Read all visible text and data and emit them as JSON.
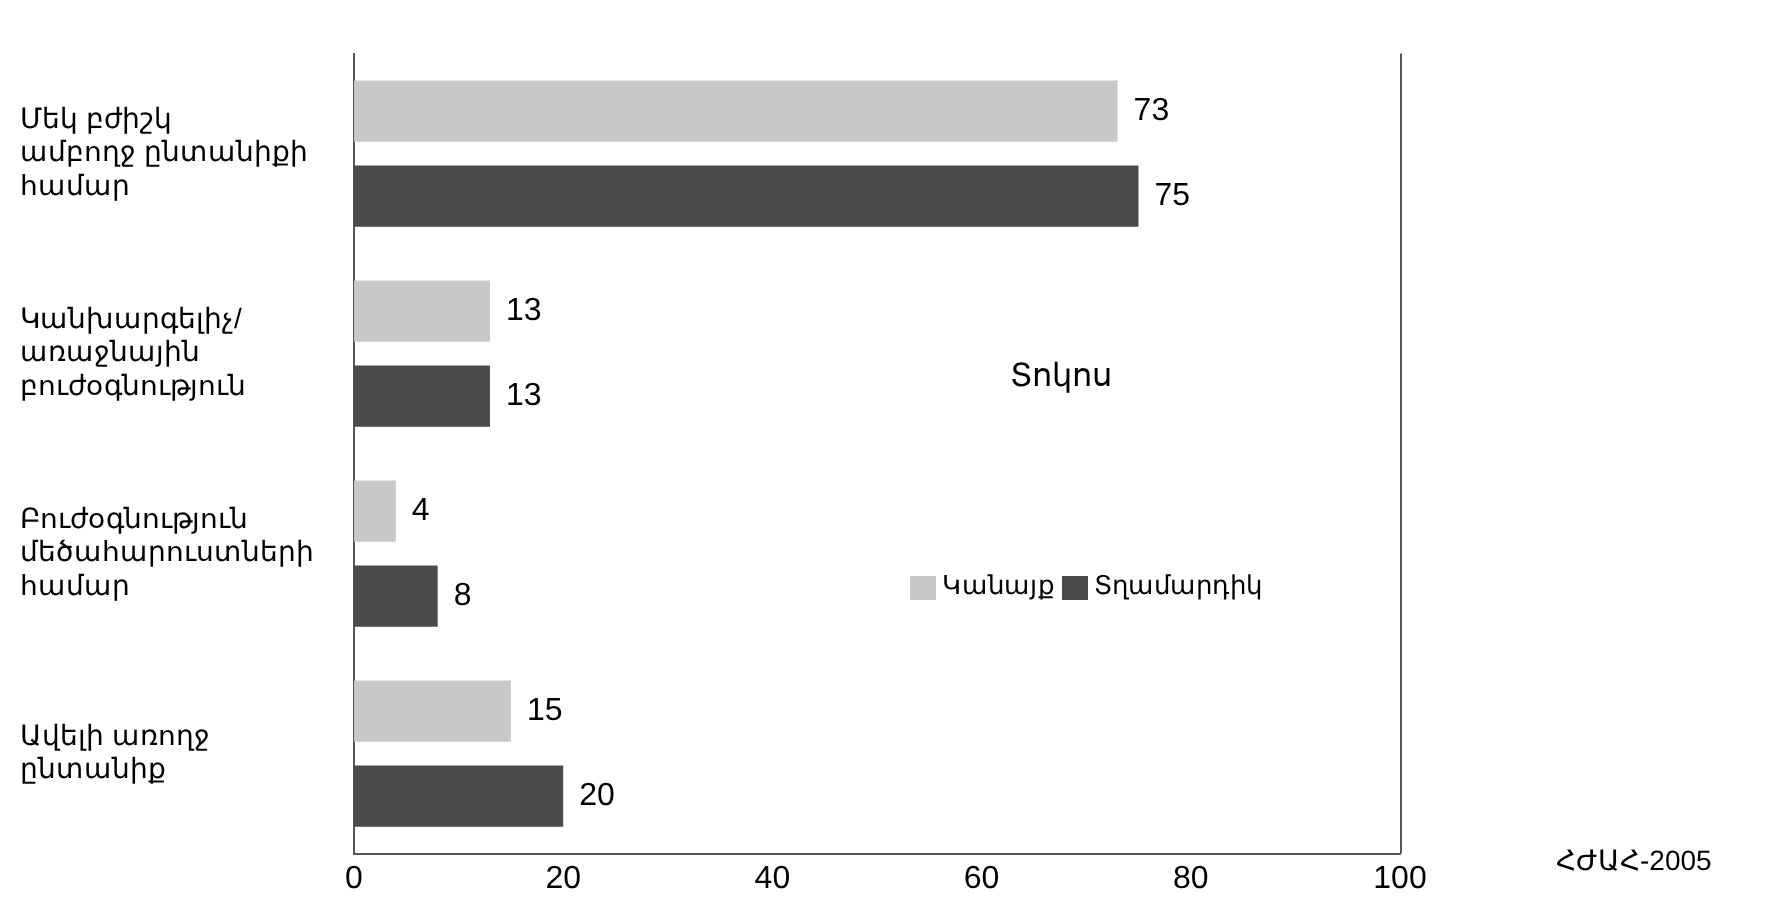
{
  "chart_data": {
    "type": "bar",
    "orientation": "horizontal",
    "categories": [
      "Մեկ բժիշկ\nամբողջ ընտանիքի\nհամար",
      "Կանխարգելիչ/\nառաջնային\nբուժօգնություն",
      "Բուժօգնություն\nմեծահարուստների\nհամար",
      "Ավելի առողջ\nընտանիք"
    ],
    "series": [
      {
        "name": "Կանայք",
        "color": "#c8c8c8",
        "values": [
          73,
          13,
          4,
          15
        ]
      },
      {
        "name": "Տղամարդիկ",
        "color": "#4a4a4a",
        "values": [
          75,
          13,
          8,
          20
        ]
      }
    ],
    "xlim": [
      0,
      100
    ],
    "xticks": [
      0,
      20,
      40,
      60,
      80,
      100
    ],
    "xlabel": "Տոկոս",
    "annotations": [
      "ՀԺԱՀ-2005"
    ],
    "data_labels": true,
    "grid": false,
    "legend": "right"
  }
}
